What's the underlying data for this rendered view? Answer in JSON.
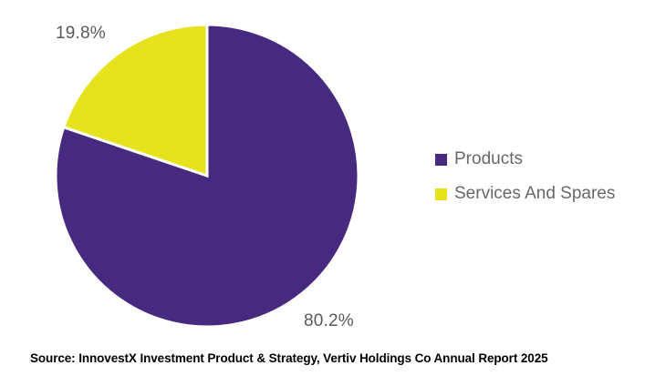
{
  "chart_data": {
    "type": "pie",
    "title": "",
    "slices": [
      {
        "label": "Products",
        "value": 80.2,
        "display": "80.2%",
        "color": "#472A80"
      },
      {
        "label": "Services And Spares",
        "value": 19.8,
        "display": "19.8%",
        "color": "#E6E31E"
      }
    ],
    "start_angle": "top",
    "direction": "clockwise",
    "legend_position": "right",
    "slice_gap_color": "#FFFFFF",
    "percent_label_color": "#58595B",
    "legend_text_color": "#67686B"
  },
  "footer": {
    "source_text": "Source: InnovestX Investment Product & Strategy, Vertiv Holdings Co Annual Report 2025"
  }
}
